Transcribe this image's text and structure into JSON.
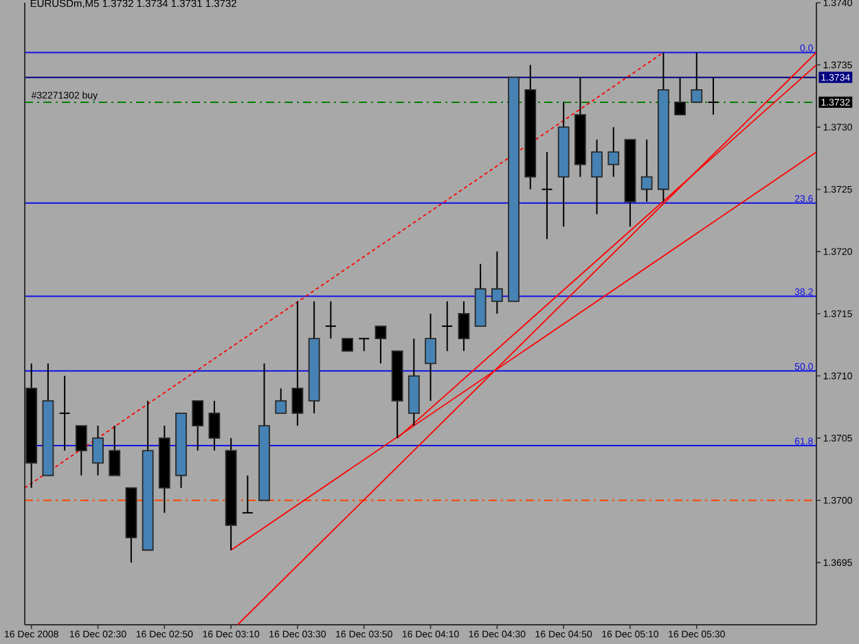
{
  "chart_data": {
    "type": "candlestick",
    "title": "EURUSDm,M5 1.3732 1.3734 1.3731 1.3732",
    "x": [
      "2008-12-16T02:10",
      "2008-12-16T02:15",
      "2008-12-16T02:20",
      "2008-12-16T02:25",
      "2008-12-16T02:30",
      "2008-12-16T02:35",
      "2008-12-16T02:40",
      "2008-12-16T02:45",
      "2008-12-16T02:50",
      "2008-12-16T02:55",
      "2008-12-16T03:00",
      "2008-12-16T03:05",
      "2008-12-16T03:10",
      "2008-12-16T03:15",
      "2008-12-16T03:20",
      "2008-12-16T03:25",
      "2008-12-16T03:30",
      "2008-12-16T03:35",
      "2008-12-16T03:40",
      "2008-12-16T03:45",
      "2008-12-16T03:50",
      "2008-12-16T03:55",
      "2008-12-16T04:00",
      "2008-12-16T04:05",
      "2008-12-16T04:10",
      "2008-12-16T04:15",
      "2008-12-16T04:20",
      "2008-12-16T04:25",
      "2008-12-16T04:30",
      "2008-12-16T04:35",
      "2008-12-16T04:40",
      "2008-12-16T04:45",
      "2008-12-16T04:50",
      "2008-12-16T04:55",
      "2008-12-16T05:00",
      "2008-12-16T05:05",
      "2008-12-16T05:10",
      "2008-12-16T05:15",
      "2008-12-16T05:20",
      "2008-12-16T05:25",
      "2008-12-16T05:30",
      "2008-12-16T05:35"
    ],
    "ohlc": [
      [
        1.3709,
        1.3711,
        1.3701,
        1.3703
      ],
      [
        1.3702,
        1.3711,
        1.3702,
        1.3708
      ],
      [
        1.3707,
        1.371,
        1.3704,
        1.3707
      ],
      [
        1.3706,
        1.3706,
        1.3702,
        1.3704
      ],
      [
        1.3703,
        1.3706,
        1.3702,
        1.3705
      ],
      [
        1.3704,
        1.3706,
        1.3702,
        1.3702
      ],
      [
        1.3701,
        1.3701,
        1.3695,
        1.3697
      ],
      [
        1.3696,
        1.3708,
        1.3696,
        1.3704
      ],
      [
        1.3705,
        1.3706,
        1.3699,
        1.3701
      ],
      [
        1.3702,
        1.3707,
        1.3701,
        1.3707
      ],
      [
        1.3708,
        1.3708,
        1.3704,
        1.3706
      ],
      [
        1.3707,
        1.3708,
        1.3704,
        1.3705
      ],
      [
        1.3704,
        1.3705,
        1.3696,
        1.3698
      ],
      [
        1.3699,
        1.3702,
        1.3699,
        1.3699
      ],
      [
        1.37,
        1.3711,
        1.37,
        1.3706
      ],
      [
        1.3707,
        1.3709,
        1.3707,
        1.3708
      ],
      [
        1.3709,
        1.3716,
        1.3706,
        1.3707
      ],
      [
        1.3708,
        1.3716,
        1.3707,
        1.3713
      ],
      [
        1.3714,
        1.3716,
        1.3713,
        1.3714
      ],
      [
        1.3713,
        1.3713,
        1.3712,
        1.3712
      ],
      [
        1.3713,
        1.3713,
        1.3712,
        1.3713
      ],
      [
        1.3714,
        1.3714,
        1.3711,
        1.3713
      ],
      [
        1.3712,
        1.3712,
        1.3705,
        1.3708
      ],
      [
        1.3707,
        1.3713,
        1.3706,
        1.371
      ],
      [
        1.3711,
        1.3715,
        1.3708,
        1.3713
      ],
      [
        1.3714,
        1.3716,
        1.3712,
        1.3714
      ],
      [
        1.3715,
        1.3716,
        1.3712,
        1.3713
      ],
      [
        1.3714,
        1.3719,
        1.3714,
        1.3717
      ],
      [
        1.3716,
        1.372,
        1.3715,
        1.3717
      ],
      [
        1.3716,
        1.3734,
        1.3716,
        1.3734
      ],
      [
        1.3733,
        1.3735,
        1.3725,
        1.3726
      ],
      [
        1.3725,
        1.3728,
        1.3721,
        1.3725
      ],
      [
        1.3726,
        1.3732,
        1.3722,
        1.373
      ],
      [
        1.3731,
        1.3734,
        1.3726,
        1.3727
      ],
      [
        1.3726,
        1.3729,
        1.3723,
        1.3728
      ],
      [
        1.3727,
        1.373,
        1.3726,
        1.3728
      ],
      [
        1.3729,
        1.3729,
        1.3722,
        1.3724
      ],
      [
        1.3725,
        1.3729,
        1.3724,
        1.3726
      ],
      [
        1.3725,
        1.3736,
        1.3724,
        1.3733
      ],
      [
        1.3732,
        1.3734,
        1.3731,
        1.3731
      ],
      [
        1.3732,
        1.3736,
        1.3732,
        1.3733
      ],
      [
        1.3732,
        1.3734,
        1.3731,
        1.3732
      ]
    ],
    "colors": [
      "#000000",
      "#4682b4",
      "#000000",
      "#000000",
      "#4682b4",
      "#000000",
      "#000000",
      "#4682b4",
      "#000000",
      "#4682b4",
      "#000000",
      "#000000",
      "#000000",
      "#000000",
      "#4682b4",
      "#4682b4",
      "#000000",
      "#4682b4",
      "#000000",
      "#000000",
      "#000000",
      "#000000",
      "#000000",
      "#4682b4",
      "#4682b4",
      "#000000",
      "#000000",
      "#4682b4",
      "#4682b4",
      "#4682b4",
      "#000000",
      "#000000",
      "#4682b4",
      "#000000",
      "#4682b4",
      "#4682b4",
      "#000000",
      "#4682b4",
      "#4682b4",
      "#000000",
      "#4682b4",
      "#000000"
    ],
    "series": [
      {
        "type": "line",
        "x": [
          "2008-12-16T02:08",
          "2008-12-16T05:20"
        ],
        "values": [
          1.3701,
          1.3736
        ],
        "color": "#ff0000",
        "line_style": "dotted"
      },
      {
        "type": "line",
        "x": [
          "2008-12-16T03:10",
          "2008-12-16T06:06"
        ],
        "values": [
          1.3696,
          1.3728
        ],
        "color": "#ff0000",
        "line_style": "solid"
      },
      {
        "type": "line",
        "x": [
          "2008-12-16T03:12",
          "2008-12-16T06:06"
        ],
        "values": [
          1.369,
          1.3736
        ],
        "color": "#ff0000",
        "line_style": "solid"
      },
      {
        "type": "line",
        "x": [
          "2008-12-16T04:00",
          "2008-12-16T06:06"
        ],
        "values": [
          1.3705,
          1.3735
        ],
        "color": "#ff0000",
        "line_style": "solid"
      }
    ],
    "ref_lines": [
      {
        "axis": "y",
        "value": 1.3736,
        "color": "#1010e8"
      },
      {
        "axis": "y",
        "value": 1.3734,
        "label": "1.3734",
        "color": "#000080"
      },
      {
        "axis": "y",
        "value": 1.3732,
        "label": "#32271302 buy",
        "color": "#008000",
        "line_style": "dashdot"
      },
      {
        "axis": "y",
        "value": 1.37239,
        "color": "#1010e8"
      },
      {
        "axis": "y",
        "value": 1.37164,
        "color": "#1010e8"
      },
      {
        "axis": "y",
        "value": 1.37104,
        "color": "#1010e8"
      },
      {
        "axis": "y",
        "value": 1.37044,
        "color": "#1010e8"
      },
      {
        "axis": "y",
        "value": 1.37,
        "color": "#ff4500",
        "line_style": "dashdot"
      }
    ],
    "annotations": [
      {
        "text": "0.0",
        "y": 1.3736
      },
      {
        "text": "1.3732",
        "y": 1.3732
      },
      {
        "text": "23.6",
        "y": 1.37239
      },
      {
        "text": "38.2",
        "y": 1.37164
      },
      {
        "text": "50.0",
        "y": 1.37104
      },
      {
        "text": "61.8",
        "y": 1.37044
      }
    ],
    "xlim": [
      "2008-12-16T02:08",
      "2008-12-16T06:06"
    ],
    "xticks": [
      {
        "value": "2008-12-16T02:10",
        "label": "16 Dec 2008"
      },
      {
        "value": "2008-12-16T02:30",
        "label": "16 Dec 02:30"
      },
      {
        "value": "2008-12-16T02:50",
        "label": "16 Dec 02:50"
      },
      {
        "value": "2008-12-16T03:10",
        "label": "16 Dec 03:10"
      },
      {
        "value": "2008-12-16T03:30",
        "label": "16 Dec 03:30"
      },
      {
        "value": "2008-12-16T03:50",
        "label": "16 Dec 03:50"
      },
      {
        "value": "2008-12-16T04:10",
        "label": "16 Dec 04:10"
      },
      {
        "value": "2008-12-16T04:30",
        "label": "16 Dec 04:30"
      },
      {
        "value": "2008-12-16T04:50",
        "label": "16 Dec 04:50"
      },
      {
        "value": "2008-12-16T05:10",
        "label": "16 Dec 05:10"
      },
      {
        "value": "2008-12-16T05:30",
        "label": "16 Dec 05:30"
      }
    ],
    "ylim": [
      1.369,
      1.374
    ],
    "yticks": [
      1.3695,
      {
        "value": 1.37,
        "label": "1.3700"
      },
      1.3705,
      {
        "value": 1.371,
        "label": "1.3710"
      },
      1.3715,
      {
        "value": 1.372,
        "label": "1.3720"
      },
      1.3725,
      {
        "value": 1.373,
        "label": "1.3730"
      },
      1.3735,
      {
        "value": 1.374,
        "label": "1.3740"
      }
    ]
  }
}
